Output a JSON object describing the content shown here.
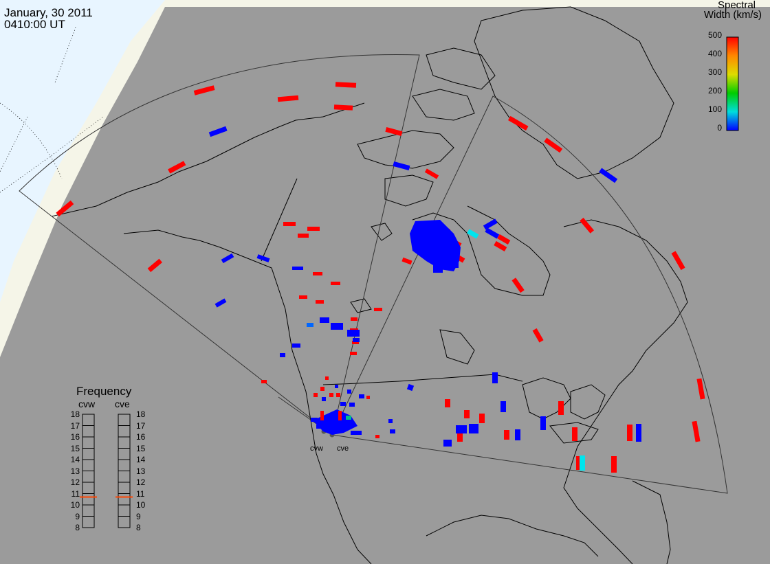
{
  "header": {
    "date": "January, 30 2011",
    "time": "0410:00 UT"
  },
  "colorbar": {
    "title_line1": "Spectral",
    "title_line2": "Width (km/s)",
    "ticks": [
      "500",
      "400",
      "300",
      "200",
      "100",
      "0"
    ],
    "stops": [
      "#ff0000",
      "#ff8800",
      "#dddd00",
      "#00cc00",
      "#00dddd",
      "#0000ff"
    ]
  },
  "frequency_panel": {
    "title": "Frequency",
    "radars": [
      {
        "name": "cvw",
        "value_mhz": 10.7
      },
      {
        "name": "cve",
        "value_mhz": 10.7
      }
    ],
    "scale": [
      "18",
      "17",
      "16",
      "15",
      "14",
      "13",
      "12",
      "11",
      "10",
      "9",
      "8"
    ],
    "marker_color": "#ff4400"
  },
  "radar_labels": [
    "cvw",
    "cve"
  ],
  "colors": {
    "night_shading": "#9b9b9b",
    "day_land": "#f5f5e8",
    "day_ocean": "#e8f5ff",
    "coastline": "#000000",
    "fov_outline": "#333333",
    "high_width": "#ff0000",
    "low_width": "#0000ff",
    "mid_width": "#00e5ee"
  }
}
